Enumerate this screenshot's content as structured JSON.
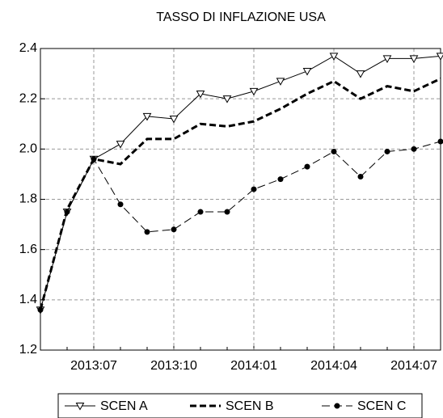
{
  "chart_data": {
    "type": "line",
    "title": "TASSO DI INFLAZIONE USA",
    "categories": [
      null,
      null,
      "2013:07",
      null,
      null,
      "2013:10",
      null,
      null,
      "2014:01",
      null,
      null,
      "2014:04",
      null,
      null,
      "2014:07",
      null
    ],
    "series": [
      {
        "name": "SCEN A",
        "color": "#000000",
        "values": [
          1.36,
          1.75,
          1.96,
          2.02,
          2.13,
          2.12,
          2.22,
          2.2,
          2.23,
          2.27,
          2.31,
          2.37,
          2.3,
          2.36,
          2.36,
          2.37
        ]
      },
      {
        "name": "SCEN B",
        "color": "#000000",
        "values": [
          1.36,
          1.76,
          1.96,
          1.94,
          2.04,
          2.04,
          2.1,
          2.09,
          2.11,
          2.16,
          2.22,
          2.27,
          2.2,
          2.25,
          2.23,
          2.28
        ]
      },
      {
        "name": "SCEN C",
        "color": "#000000",
        "values": [
          1.36,
          1.75,
          1.96,
          1.78,
          1.67,
          1.68,
          1.75,
          1.75,
          1.84,
          1.88,
          1.93,
          1.99,
          1.89,
          1.99,
          2.0,
          2.03
        ]
      }
    ],
    "ylim": [
      1.2,
      2.4
    ],
    "yticks": [
      1.2,
      1.4,
      1.6,
      1.8,
      {
        "value": 2,
        "label": "2.0"
      },
      2.2,
      2.4
    ],
    "grid": true,
    "legend": "bottom"
  }
}
